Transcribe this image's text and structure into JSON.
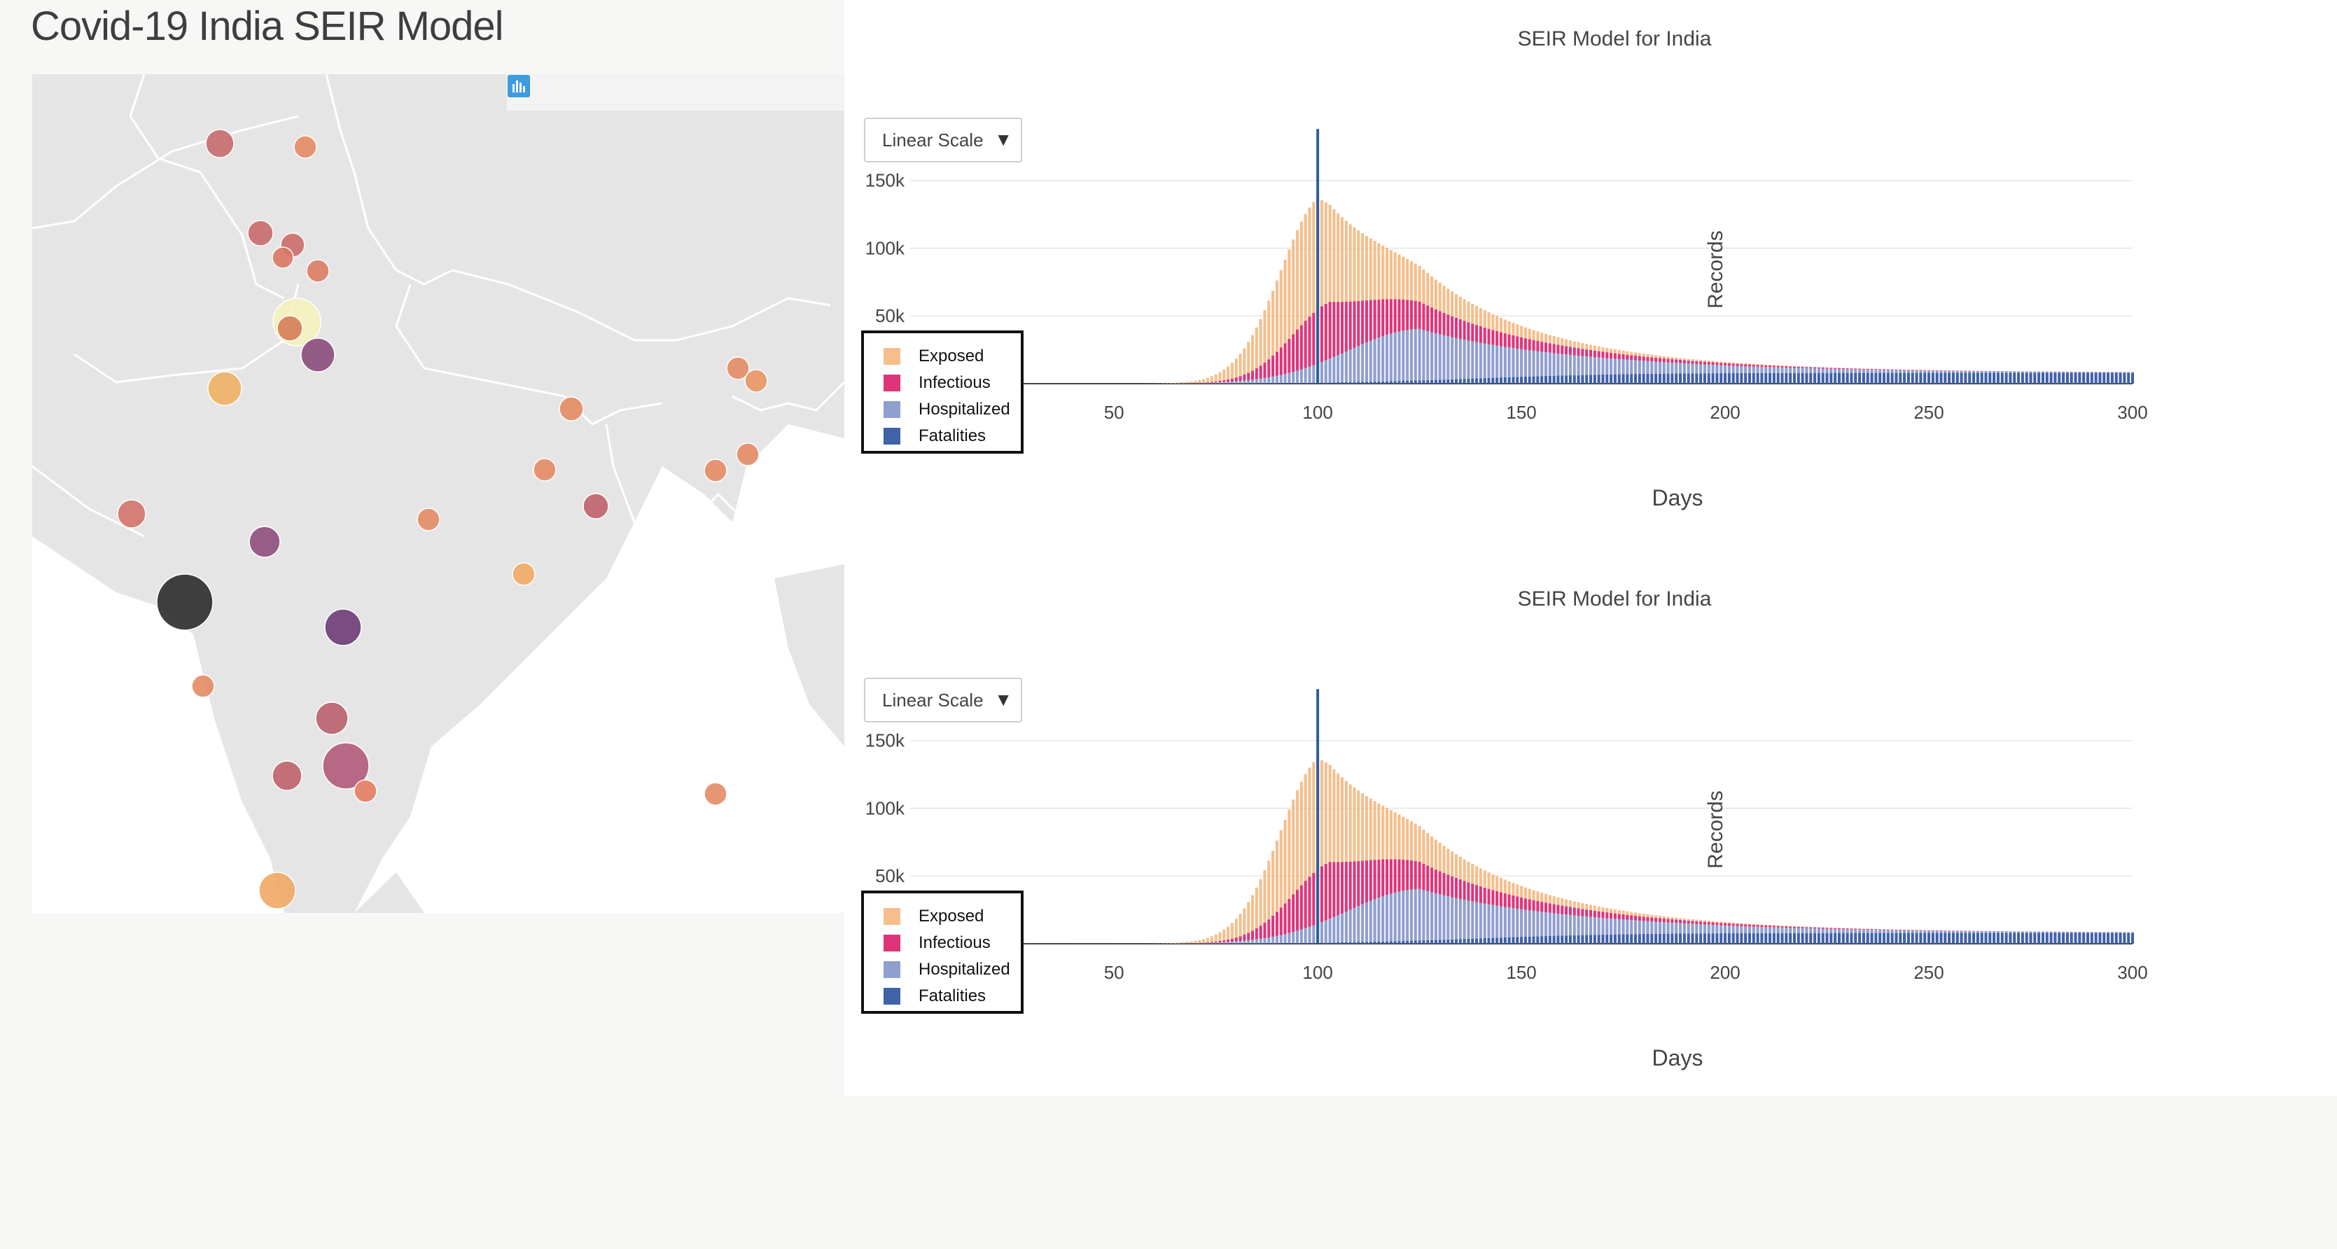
{
  "page": {
    "title": "Covid-19 India SEIR Model"
  },
  "colors": {
    "exposed": "#f5be8c",
    "infectious": "#e0347a",
    "hospitalized": "#8f9fce",
    "fatalities": "#3f62a8",
    "land": "#e5e5e5",
    "border": "#ffffff"
  },
  "map": {
    "modebar_icons": [
      "camera-icon",
      "pan-icon",
      "box-select-icon",
      "lasso-select-icon",
      "zoom-in-icon",
      "zoom-out-icon",
      "autoscale-icon",
      "reset-view-icon",
      "plotly-logo-icon"
    ],
    "markers_note_hidden": true
  },
  "charts": [
    {
      "title": "SEIR Model for India",
      "dropdown": {
        "selected": "Linear Scale"
      },
      "legend": [
        "Exposed",
        "Infectious",
        "Hospitalized",
        "Fatalities"
      ]
    },
    {
      "title": "SEIR Model for India",
      "dropdown": {
        "selected": "Linear Scale"
      },
      "legend": [
        "Exposed",
        "Infectious",
        "Hospitalized",
        "Fatalities"
      ]
    }
  ],
  "chart_data": [
    {
      "type": "bar",
      "stacked": true,
      "title": "SEIR Model for India",
      "xlabel": "Days",
      "ylabel": "Records",
      "xlim": [
        1,
        300
      ],
      "ylim": [
        0,
        185000
      ],
      "x_ticks": [
        50,
        100,
        150,
        200,
        250,
        300
      ],
      "y_ticks": [
        0,
        50000,
        100000,
        150000
      ],
      "y_tick_labels": [
        "0",
        "50k",
        "100k",
        "150k"
      ],
      "grid": true,
      "legend_position": "left",
      "series": [
        {
          "name": "Exposed",
          "peak_day": 100,
          "peak_value": 82000
        },
        {
          "name": "Infectious",
          "peak_day": 103,
          "peak_value": 42000
        },
        {
          "name": "Hospitalized",
          "peak_day": 125,
          "peak_value": 38000
        },
        {
          "name": "Fatalities",
          "final_value": 8000
        }
      ],
      "vertical_line": {
        "x": 100,
        "y": 188000
      }
    },
    {
      "type": "bar",
      "stacked": true,
      "title": "SEIR Model for India",
      "xlabel": "Days",
      "ylabel": "Records",
      "xlim": [
        1,
        300
      ],
      "ylim": [
        0,
        185000
      ],
      "x_ticks": [
        50,
        100,
        150,
        200,
        250,
        300
      ],
      "y_ticks": [
        0,
        50000,
        100000,
        150000
      ],
      "y_tick_labels": [
        "0",
        "50k",
        "100k",
        "150k"
      ],
      "grid": true,
      "legend_position": "left",
      "series": [
        {
          "name": "Exposed",
          "peak_day": 100,
          "peak_value": 82000
        },
        {
          "name": "Infectious",
          "peak_day": 103,
          "peak_value": 42000
        },
        {
          "name": "Hospitalized",
          "peak_day": 125,
          "peak_value": 38000
        },
        {
          "name": "Fatalities",
          "final_value": 8000
        }
      ],
      "vertical_line": {
        "x": 100,
        "y": 188000
      }
    }
  ]
}
